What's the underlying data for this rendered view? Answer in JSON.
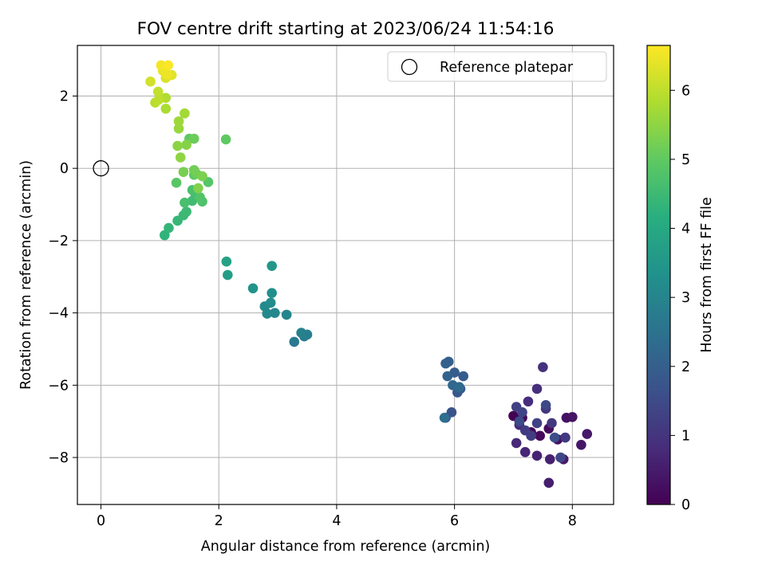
{
  "chart_data": {
    "type": "scatter",
    "title": "FOV centre drift starting at 2023/06/24 11:54:16",
    "xlabel": "Angular distance from reference (arcmin)",
    "ylabel": "Rotation from reference (arcmin)",
    "xlim": [
      -0.4,
      8.7
    ],
    "ylim": [
      -9.3,
      3.4
    ],
    "xticks": [
      0,
      2,
      4,
      6,
      8
    ],
    "yticks": [
      -8,
      -6,
      -4,
      -2,
      0,
      2
    ],
    "grid": true,
    "legend": {
      "position": "top-right",
      "entries": [
        "Reference platepar"
      ]
    },
    "reference_point": {
      "x": 0,
      "y": 0
    },
    "colorbar": {
      "label": "Hours from first FF file",
      "range": [
        0,
        6.65
      ],
      "ticks": [
        0,
        1,
        2,
        3,
        4,
        5,
        6
      ],
      "colormap": "viridis"
    },
    "points": [
      {
        "x": 7.0,
        "y": -6.85,
        "h": 0.0
      },
      {
        "x": 7.15,
        "y": -6.9,
        "h": 0.05
      },
      {
        "x": 7.3,
        "y": -7.3,
        "h": 0.1
      },
      {
        "x": 7.45,
        "y": -7.4,
        "h": 0.15
      },
      {
        "x": 7.6,
        "y": -7.2,
        "h": 0.2
      },
      {
        "x": 7.75,
        "y": -7.5,
        "h": 0.25
      },
      {
        "x": 7.9,
        "y": -6.9,
        "h": 0.3
      },
      {
        "x": 8.0,
        "y": -6.88,
        "h": 0.35
      },
      {
        "x": 8.15,
        "y": -7.65,
        "h": 0.4
      },
      {
        "x": 8.25,
        "y": -7.35,
        "h": 0.45
      },
      {
        "x": 7.85,
        "y": -8.05,
        "h": 0.5
      },
      {
        "x": 7.6,
        "y": -8.7,
        "h": 0.55
      },
      {
        "x": 7.62,
        "y": -8.05,
        "h": 0.6
      },
      {
        "x": 7.4,
        "y": -7.95,
        "h": 0.65
      },
      {
        "x": 7.2,
        "y": -7.85,
        "h": 0.7
      },
      {
        "x": 7.05,
        "y": -7.6,
        "h": 0.75
      },
      {
        "x": 7.1,
        "y": -7.1,
        "h": 0.8
      },
      {
        "x": 7.25,
        "y": -6.45,
        "h": 0.85
      },
      {
        "x": 7.4,
        "y": -6.1,
        "h": 0.9
      },
      {
        "x": 7.5,
        "y": -5.5,
        "h": 0.95
      },
      {
        "x": 7.55,
        "y": -6.65,
        "h": 1.0
      },
      {
        "x": 7.65,
        "y": -7.05,
        "h": 1.05
      },
      {
        "x": 7.88,
        "y": -7.45,
        "h": 1.1
      },
      {
        "x": 7.2,
        "y": -7.25,
        "h": 1.15
      },
      {
        "x": 7.3,
        "y": -7.4,
        "h": 1.2
      },
      {
        "x": 7.05,
        "y": -6.6,
        "h": 1.25
      },
      {
        "x": 7.4,
        "y": -7.05,
        "h": 1.3
      },
      {
        "x": 7.15,
        "y": -6.75,
        "h": 1.35
      },
      {
        "x": 7.8,
        "y": -8.0,
        "h": 1.4
      },
      {
        "x": 7.55,
        "y": -6.55,
        "h": 1.45
      },
      {
        "x": 7.1,
        "y": -7.0,
        "h": 1.5
      },
      {
        "x": 7.7,
        "y": -7.45,
        "h": 1.55
      },
      {
        "x": 5.85,
        "y": -6.9,
        "h": 1.6
      },
      {
        "x": 5.95,
        "y": -6.75,
        "h": 1.7
      },
      {
        "x": 6.05,
        "y": -6.2,
        "h": 1.8
      },
      {
        "x": 6.1,
        "y": -6.1,
        "h": 1.85
      },
      {
        "x": 6.15,
        "y": -5.75,
        "h": 1.9
      },
      {
        "x": 6.0,
        "y": -5.65,
        "h": 1.95
      },
      {
        "x": 5.9,
        "y": -5.35,
        "h": 2.0
      },
      {
        "x": 5.85,
        "y": -5.4,
        "h": 2.05
      },
      {
        "x": 5.88,
        "y": -5.75,
        "h": 2.1
      },
      {
        "x": 5.97,
        "y": -6.0,
        "h": 2.2
      },
      {
        "x": 6.08,
        "y": -6.05,
        "h": 2.3
      },
      {
        "x": 5.83,
        "y": -6.9,
        "h": 2.4
      },
      {
        "x": 3.28,
        "y": -4.8,
        "h": 2.7
      },
      {
        "x": 3.45,
        "y": -4.65,
        "h": 2.8
      },
      {
        "x": 3.5,
        "y": -4.6,
        "h": 2.85
      },
      {
        "x": 3.4,
        "y": -4.55,
        "h": 2.9
      },
      {
        "x": 3.15,
        "y": -4.05,
        "h": 3.0
      },
      {
        "x": 2.95,
        "y": -4.0,
        "h": 3.05
      },
      {
        "x": 2.82,
        "y": -4.02,
        "h": 3.1
      },
      {
        "x": 2.78,
        "y": -3.82,
        "h": 3.15
      },
      {
        "x": 2.88,
        "y": -3.72,
        "h": 3.2
      },
      {
        "x": 2.9,
        "y": -3.45,
        "h": 3.3
      },
      {
        "x": 2.58,
        "y": -3.32,
        "h": 3.4
      },
      {
        "x": 2.9,
        "y": -2.7,
        "h": 3.5
      },
      {
        "x": 2.15,
        "y": -2.95,
        "h": 3.7
      },
      {
        "x": 2.13,
        "y": -2.58,
        "h": 3.8
      },
      {
        "x": 1.08,
        "y": -1.85,
        "h": 4.3
      },
      {
        "x": 1.15,
        "y": -1.65,
        "h": 4.35
      },
      {
        "x": 1.3,
        "y": -1.45,
        "h": 4.4
      },
      {
        "x": 1.4,
        "y": -1.3,
        "h": 4.45
      },
      {
        "x": 1.45,
        "y": -1.2,
        "h": 4.5
      },
      {
        "x": 1.55,
        "y": -0.9,
        "h": 4.55
      },
      {
        "x": 1.6,
        "y": -0.7,
        "h": 4.6
      },
      {
        "x": 1.42,
        "y": -0.95,
        "h": 4.65
      },
      {
        "x": 1.55,
        "y": -0.6,
        "h": 4.7
      },
      {
        "x": 1.72,
        "y": -0.92,
        "h": 4.75
      },
      {
        "x": 1.68,
        "y": -0.8,
        "h": 4.8
      },
      {
        "x": 1.82,
        "y": -0.38,
        "h": 4.85
      },
      {
        "x": 1.28,
        "y": -0.4,
        "h": 4.9
      },
      {
        "x": 1.58,
        "y": -0.18,
        "h": 4.95
      },
      {
        "x": 1.5,
        "y": 0.82,
        "h": 4.95
      },
      {
        "x": 2.12,
        "y": 0.8,
        "h": 5.0
      },
      {
        "x": 1.58,
        "y": 0.82,
        "h": 5.1
      },
      {
        "x": 1.62,
        "y": -0.15,
        "h": 5.15
      },
      {
        "x": 1.58,
        "y": -0.05,
        "h": 5.2
      },
      {
        "x": 1.4,
        "y": -0.1,
        "h": 5.25
      },
      {
        "x": 1.72,
        "y": -0.22,
        "h": 5.3
      },
      {
        "x": 1.65,
        "y": -0.55,
        "h": 5.35
      },
      {
        "x": 1.45,
        "y": 0.65,
        "h": 5.4
      },
      {
        "x": 1.3,
        "y": 0.62,
        "h": 5.45
      },
      {
        "x": 1.35,
        "y": 0.3,
        "h": 5.5
      },
      {
        "x": 1.32,
        "y": 1.1,
        "h": 5.6
      },
      {
        "x": 1.32,
        "y": 1.3,
        "h": 5.65
      },
      {
        "x": 1.42,
        "y": 1.52,
        "h": 5.7
      },
      {
        "x": 1.1,
        "y": 1.65,
        "h": 5.8
      },
      {
        "x": 1.1,
        "y": 1.95,
        "h": 5.85
      },
      {
        "x": 0.92,
        "y": 1.82,
        "h": 5.95
      },
      {
        "x": 0.98,
        "y": 1.9,
        "h": 6.0
      },
      {
        "x": 0.97,
        "y": 2.12,
        "h": 6.05
      },
      {
        "x": 0.84,
        "y": 2.4,
        "h": 6.2
      },
      {
        "x": 1.1,
        "y": 2.5,
        "h": 6.3
      },
      {
        "x": 1.2,
        "y": 2.58,
        "h": 6.35
      },
      {
        "x": 1.05,
        "y": 2.7,
        "h": 6.45
      },
      {
        "x": 1.02,
        "y": 2.85,
        "h": 6.55
      },
      {
        "x": 1.14,
        "y": 2.85,
        "h": 6.62
      },
      {
        "x": 1.12,
        "y": 2.6,
        "h": 6.5
      }
    ]
  }
}
